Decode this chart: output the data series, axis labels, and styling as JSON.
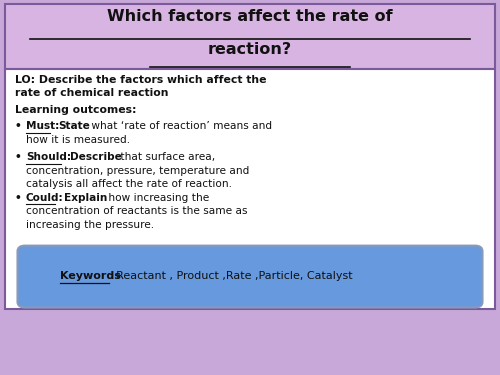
{
  "title_line1": "Which factors affect the rate of",
  "title_line2": "reaction?",
  "title_bg": "#d8b4e2",
  "title_border": "#7a5a9a",
  "main_bg": "#ffffff",
  "main_border": "#7a5a9a",
  "lo_line1": "LO: Describe the factors which affect the",
  "lo_line2": "rate of chemical reaction",
  "outcomes_header": "Learning outcomes:",
  "must_label": "Must",
  "must_bold": "State",
  "must_rest1": " what ‘rate of reaction’ means and",
  "must_rest2": "how it is measured.",
  "should_label": "Should",
  "should_bold": "Describe",
  "should_rest1": " that surface area,",
  "should_rest2": "concentration, pressure, temperature and",
  "should_rest3": "catalysis all affect the rate of reaction.",
  "could_label": "Could",
  "could_bold": "Explain",
  "could_rest1": " how increasing the",
  "could_rest2": "concentration of reactants is the same as",
  "could_rest3": "increasing the pressure.",
  "keywords_label": "Keywords",
  "keywords_rest": ": Reactant , Product ,Rate ,Particle, Catalyst",
  "keywords_bg": "#6699dd",
  "keywords_border": "#8899bb",
  "fig_bg": "#c8a8d8"
}
